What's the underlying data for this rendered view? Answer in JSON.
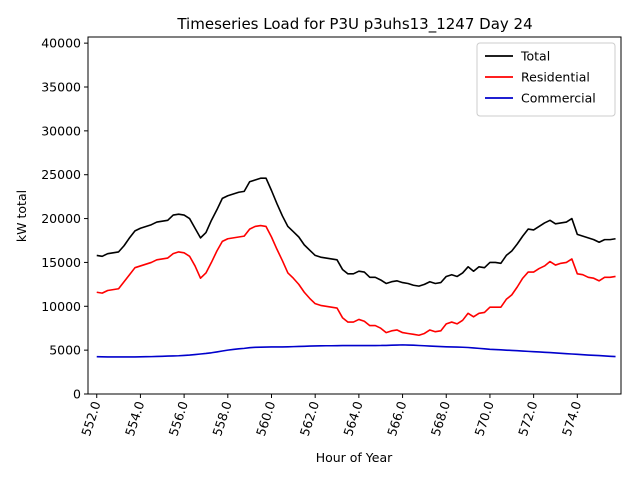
{
  "chart_data": {
    "type": "line",
    "title": "Timeseries Load for P3U p3uhs13_1247  Day 24",
    "xlabel": "Hour of Year",
    "ylabel": "kW total",
    "xlim": [
      551.6,
      576.0
    ],
    "ylim": [
      0,
      40700
    ],
    "x_ticks": [
      552,
      554,
      556,
      558,
      560,
      562,
      564,
      566,
      568,
      570,
      572,
      574
    ],
    "x_tick_labels": [
      "552.0",
      "554.0",
      "556.0",
      "558.0",
      "560.0",
      "562.0",
      "564.0",
      "566.0",
      "568.0",
      "570.0",
      "572.0",
      "574.0"
    ],
    "y_ticks": [
      0,
      5000,
      10000,
      15000,
      20000,
      25000,
      30000,
      35000,
      40000
    ],
    "y_tick_labels": [
      "0",
      "5000",
      "10000",
      "15000",
      "20000",
      "25000",
      "30000",
      "35000",
      "40000"
    ],
    "grid": false,
    "legend_position": "top-right",
    "x": [
      552.0,
      552.25,
      552.5,
      552.75,
      553.0,
      553.25,
      553.5,
      553.75,
      554.0,
      554.25,
      554.5,
      554.75,
      555.0,
      555.25,
      555.5,
      555.75,
      556.0,
      556.25,
      556.5,
      556.75,
      557.0,
      557.25,
      557.5,
      557.75,
      558.0,
      558.25,
      558.5,
      558.75,
      559.0,
      559.25,
      559.5,
      559.75,
      560.0,
      560.25,
      560.5,
      560.75,
      561.0,
      561.25,
      561.5,
      561.75,
      562.0,
      562.25,
      562.5,
      562.75,
      563.0,
      563.25,
      563.5,
      563.75,
      564.0,
      564.25,
      564.5,
      564.75,
      565.0,
      565.25,
      565.5,
      565.75,
      566.0,
      566.25,
      566.5,
      566.75,
      567.0,
      567.25,
      567.5,
      567.75,
      568.0,
      568.25,
      568.5,
      568.75,
      569.0,
      569.25,
      569.5,
      569.75,
      570.0,
      570.25,
      570.5,
      570.75,
      571.0,
      571.25,
      571.5,
      571.75,
      572.0,
      572.25,
      572.5,
      572.75,
      573.0,
      573.25,
      573.5,
      573.75,
      574.0,
      574.25,
      574.5,
      574.75,
      575.0,
      575.25,
      575.5,
      575.75
    ],
    "series": [
      {
        "name": "Total",
        "color": "#000000",
        "values": [
          15800,
          15700,
          16000,
          16100,
          16200,
          16900,
          17800,
          18600,
          18900,
          19100,
          19300,
          19600,
          19700,
          19800,
          20400,
          20500,
          20400,
          20000,
          18900,
          17800,
          18400,
          19800,
          21000,
          22300,
          22600,
          22800,
          23000,
          23100,
          24200,
          24400,
          24600,
          24600,
          23200,
          21700,
          20300,
          19100,
          18500,
          17900,
          17000,
          16400,
          15800,
          15600,
          15500,
          15400,
          15300,
          14200,
          13700,
          13700,
          14000,
          13900,
          13300,
          13300,
          13000,
          12600,
          12800,
          12900,
          12700,
          12600,
          12400,
          12300,
          12500,
          12800,
          12600,
          12700,
          13400,
          13600,
          13400,
          13800,
          14500,
          14000,
          14500,
          14400,
          15000,
          15000,
          14900,
          15800,
          16300,
          17100,
          18000,
          18800,
          18700,
          19100,
          19500,
          19800,
          19400,
          19500,
          19600,
          20000,
          18200,
          18000,
          17800,
          17600,
          17300,
          17600,
          17600,
          17700
        ]
      },
      {
        "name": "Residential",
        "color": "#ff0000",
        "values": [
          11600,
          11500,
          11800,
          11900,
          12000,
          12800,
          13600,
          14400,
          14600,
          14800,
          15000,
          15300,
          15400,
          15500,
          16000,
          16200,
          16100,
          15700,
          14600,
          13200,
          13800,
          15000,
          16300,
          17400,
          17700,
          17800,
          17900,
          18000,
          18800,
          19100,
          19200,
          19100,
          17900,
          16500,
          15200,
          13800,
          13200,
          12500,
          11600,
          10900,
          10300,
          10100,
          10000,
          9900,
          9800,
          8700,
          8200,
          8200,
          8500,
          8300,
          7800,
          7800,
          7500,
          7000,
          7200,
          7300,
          7000,
          6900,
          6800,
          6700,
          6900,
          7300,
          7100,
          7200,
          8000,
          8200,
          8000,
          8400,
          9200,
          8800,
          9200,
          9300,
          9900,
          9900,
          9900,
          10800,
          11300,
          12200,
          13200,
          13900,
          13900,
          14300,
          14600,
          15100,
          14700,
          14900,
          15000,
          15400,
          13700,
          13600,
          13300,
          13200,
          12900,
          13300,
          13300,
          13400
        ]
      },
      {
        "name": "Commercial",
        "color": "#0000cc",
        "values": [
          4250,
          4240,
          4230,
          4220,
          4220,
          4220,
          4220,
          4230,
          4240,
          4250,
          4260,
          4280,
          4300,
          4320,
          4340,
          4360,
          4400,
          4440,
          4500,
          4560,
          4620,
          4700,
          4800,
          4900,
          5000,
          5080,
          5150,
          5200,
          5280,
          5320,
          5340,
          5350,
          5360,
          5360,
          5370,
          5380,
          5400,
          5420,
          5440,
          5460,
          5480,
          5490,
          5500,
          5500,
          5510,
          5520,
          5520,
          5520,
          5520,
          5520,
          5520,
          5520,
          5530,
          5540,
          5560,
          5580,
          5600,
          5580,
          5560,
          5530,
          5500,
          5470,
          5440,
          5410,
          5380,
          5360,
          5350,
          5330,
          5300,
          5250,
          5200,
          5150,
          5100,
          5070,
          5040,
          5000,
          4970,
          4940,
          4900,
          4860,
          4820,
          4790,
          4750,
          4720,
          4680,
          4640,
          4600,
          4560,
          4520,
          4480,
          4440,
          4410,
          4380,
          4340,
          4300,
          4270
        ]
      }
    ]
  }
}
